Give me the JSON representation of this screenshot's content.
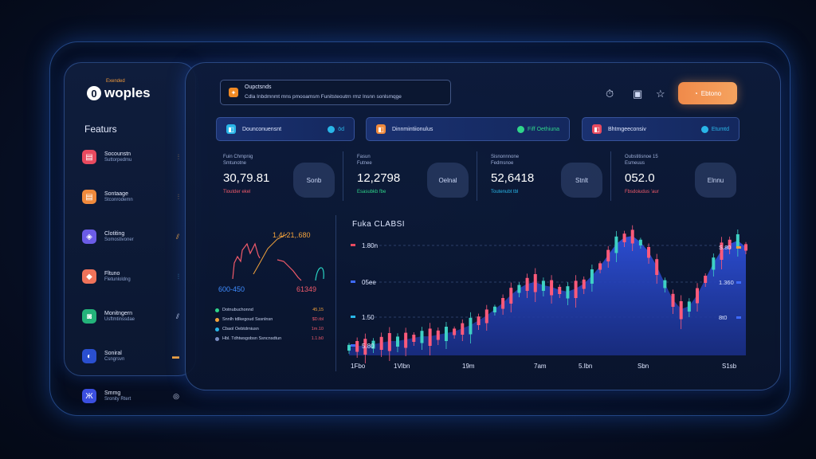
{
  "brand": {
    "tagline": "Exended",
    "mark": "0",
    "name": "woples"
  },
  "sidebar": {
    "title": "Featurs",
    "items": [
      {
        "icon": "chat-icon",
        "label": "Socounstn",
        "sub": "Suttorpedmu",
        "glyph": "⫶",
        "color": "#e84a5f",
        "glyph_color": "#f3a33c"
      },
      {
        "icon": "chat-icon",
        "label": "Sontaage",
        "sub": "Stconrodemn",
        "glyph": "⫶",
        "color": "#f08a3c",
        "glyph_color": "#f3a33c"
      },
      {
        "icon": "grid-icon",
        "label": "Clotiting",
        "sub": "Somostivoner",
        "glyph": "⫽",
        "color": "#6b5ce7",
        "glyph_color": "#f3a33c"
      },
      {
        "icon": "lock-icon",
        "label": "Fltuno",
        "sub": "Fletunloldng",
        "glyph": "⫶",
        "color": "#f0735a",
        "glyph_color": "#4ab6e8"
      },
      {
        "icon": "wallet-icon",
        "label": "Monitngern",
        "sub": "Usftmtinssdae",
        "glyph": "⫽",
        "color": "#24b37a",
        "glyph_color": "#cfd9f5"
      },
      {
        "icon": "shield-icon",
        "label": "Soniral",
        "sub": "Csngrsvn",
        "glyph": "▬",
        "color": "#2a4fcf",
        "glyph_color": "#f3a33c"
      },
      {
        "icon": "graph-icon",
        "label": "Smmg",
        "sub": "Sronity Rtert",
        "glyph": "◎",
        "color": "#3b4fe0",
        "glyph_color": "#cfd9f5"
      }
    ]
  },
  "notice": {
    "title": "Oupctsnds",
    "text": "Cdla Inbdmnmt mns pmooamsm Funitsteoutrn rmz lnsnn sonlsmqge"
  },
  "toolbar": {
    "cta_label": "Ebtono"
  },
  "tabs": [
    {
      "label": "Dounconuensnt",
      "right": "ōd",
      "icon_color": "#29b6e8",
      "right_color": "#29b6e8"
    },
    {
      "label": "Dinnmintiionulus",
      "right": "Fiff Oethiuna",
      "icon_color": "#f08a3c",
      "right_color": "#2fd48a"
    },
    {
      "label": "Bhtmgeeconsiv",
      "right": "Etumtd",
      "icon_color": "#e84a5f",
      "right_color": "#29b6e8"
    }
  ],
  "stats": [
    {
      "title": "Fuin Chmpnig\nSmtunotne",
      "value": "30,79.81",
      "change": "Tioutder ekel",
      "change_color": "#f05a6a",
      "blob": "Sonb"
    },
    {
      "title": "Fasun\nFutnee",
      "value": "12,2798",
      "change": "Esasubkb fbe",
      "change_color": "#2fd48a",
      "blob": "Oelnal"
    },
    {
      "title": "Sisnonnnone\nFedmsnoe",
      "value": "52,6418",
      "change": "Toutenubt tbl",
      "change_color": "#29b6e8",
      "blob": "Stnlt"
    },
    {
      "title": "Oubstitisnoe 15\nEsmeuus",
      "value": "052.0",
      "change": "Fbsdoiudus ’aur",
      "change_color": "#f05a6a",
      "blob": "Elnnu"
    }
  ],
  "mini": {
    "top_value": "1.4/.21,.680",
    "left_value": "600-450",
    "right_value": "61349",
    "legend": [
      {
        "label": "Dotnubuchonnd",
        "value": "45,15",
        "color": "#2fd48a",
        "value_color": "#f3a33c"
      },
      {
        "label": "Snnlh tdlkegoud Sssnlnsn",
        "value": "$D.tbl",
        "color": "#f3a33c",
        "value_color": "#f05a6a"
      },
      {
        "label": "Cbaol Oebtdrniusn",
        "value": "1m.10",
        "color": "#29b6e8",
        "value_color": "#f05a6a"
      },
      {
        "label": "Hbl. Tdhtwsgobsn Ssncnsdtun",
        "value": "1.1.b0",
        "color": "#7a8cc0",
        "value_color": "#f05a6a"
      }
    ]
  },
  "main_chart": {
    "title": "Fuka CLABSI",
    "y_labels": [
      {
        "label": "1.80n",
        "color": "#e84a5f"
      },
      {
        "label": "05ee",
        "color": "#3e6bff"
      },
      {
        "label": "1.50",
        "color": "#29b6e8"
      },
      {
        "label": "5.80",
        "color": "#3e6bff"
      }
    ],
    "right_labels": [
      "S.80",
      "1.360",
      "8t0"
    ],
    "x_labels": [
      "1Fbo",
      "1Vlbn",
      "19m",
      "7am",
      "5.lbn",
      "Sbn",
      "S1sb"
    ]
  },
  "chart_data": {
    "type": "area",
    "title": "Fuka CLABSI",
    "series": [
      {
        "values": [
          5,
          6,
          6,
          7,
          8,
          9,
          9,
          10,
          11,
          12,
          12,
          13,
          14,
          15,
          17,
          19,
          22,
          25,
          29,
          33,
          38,
          42,
          45,
          46,
          44,
          43,
          41,
          40,
          42,
          45,
          50,
          56,
          63,
          70,
          74,
          75,
          71,
          65,
          56,
          45,
          35,
          29,
          31,
          38,
          48,
          58,
          66,
          70,
          72,
          68
        ]
      }
    ]
  }
}
